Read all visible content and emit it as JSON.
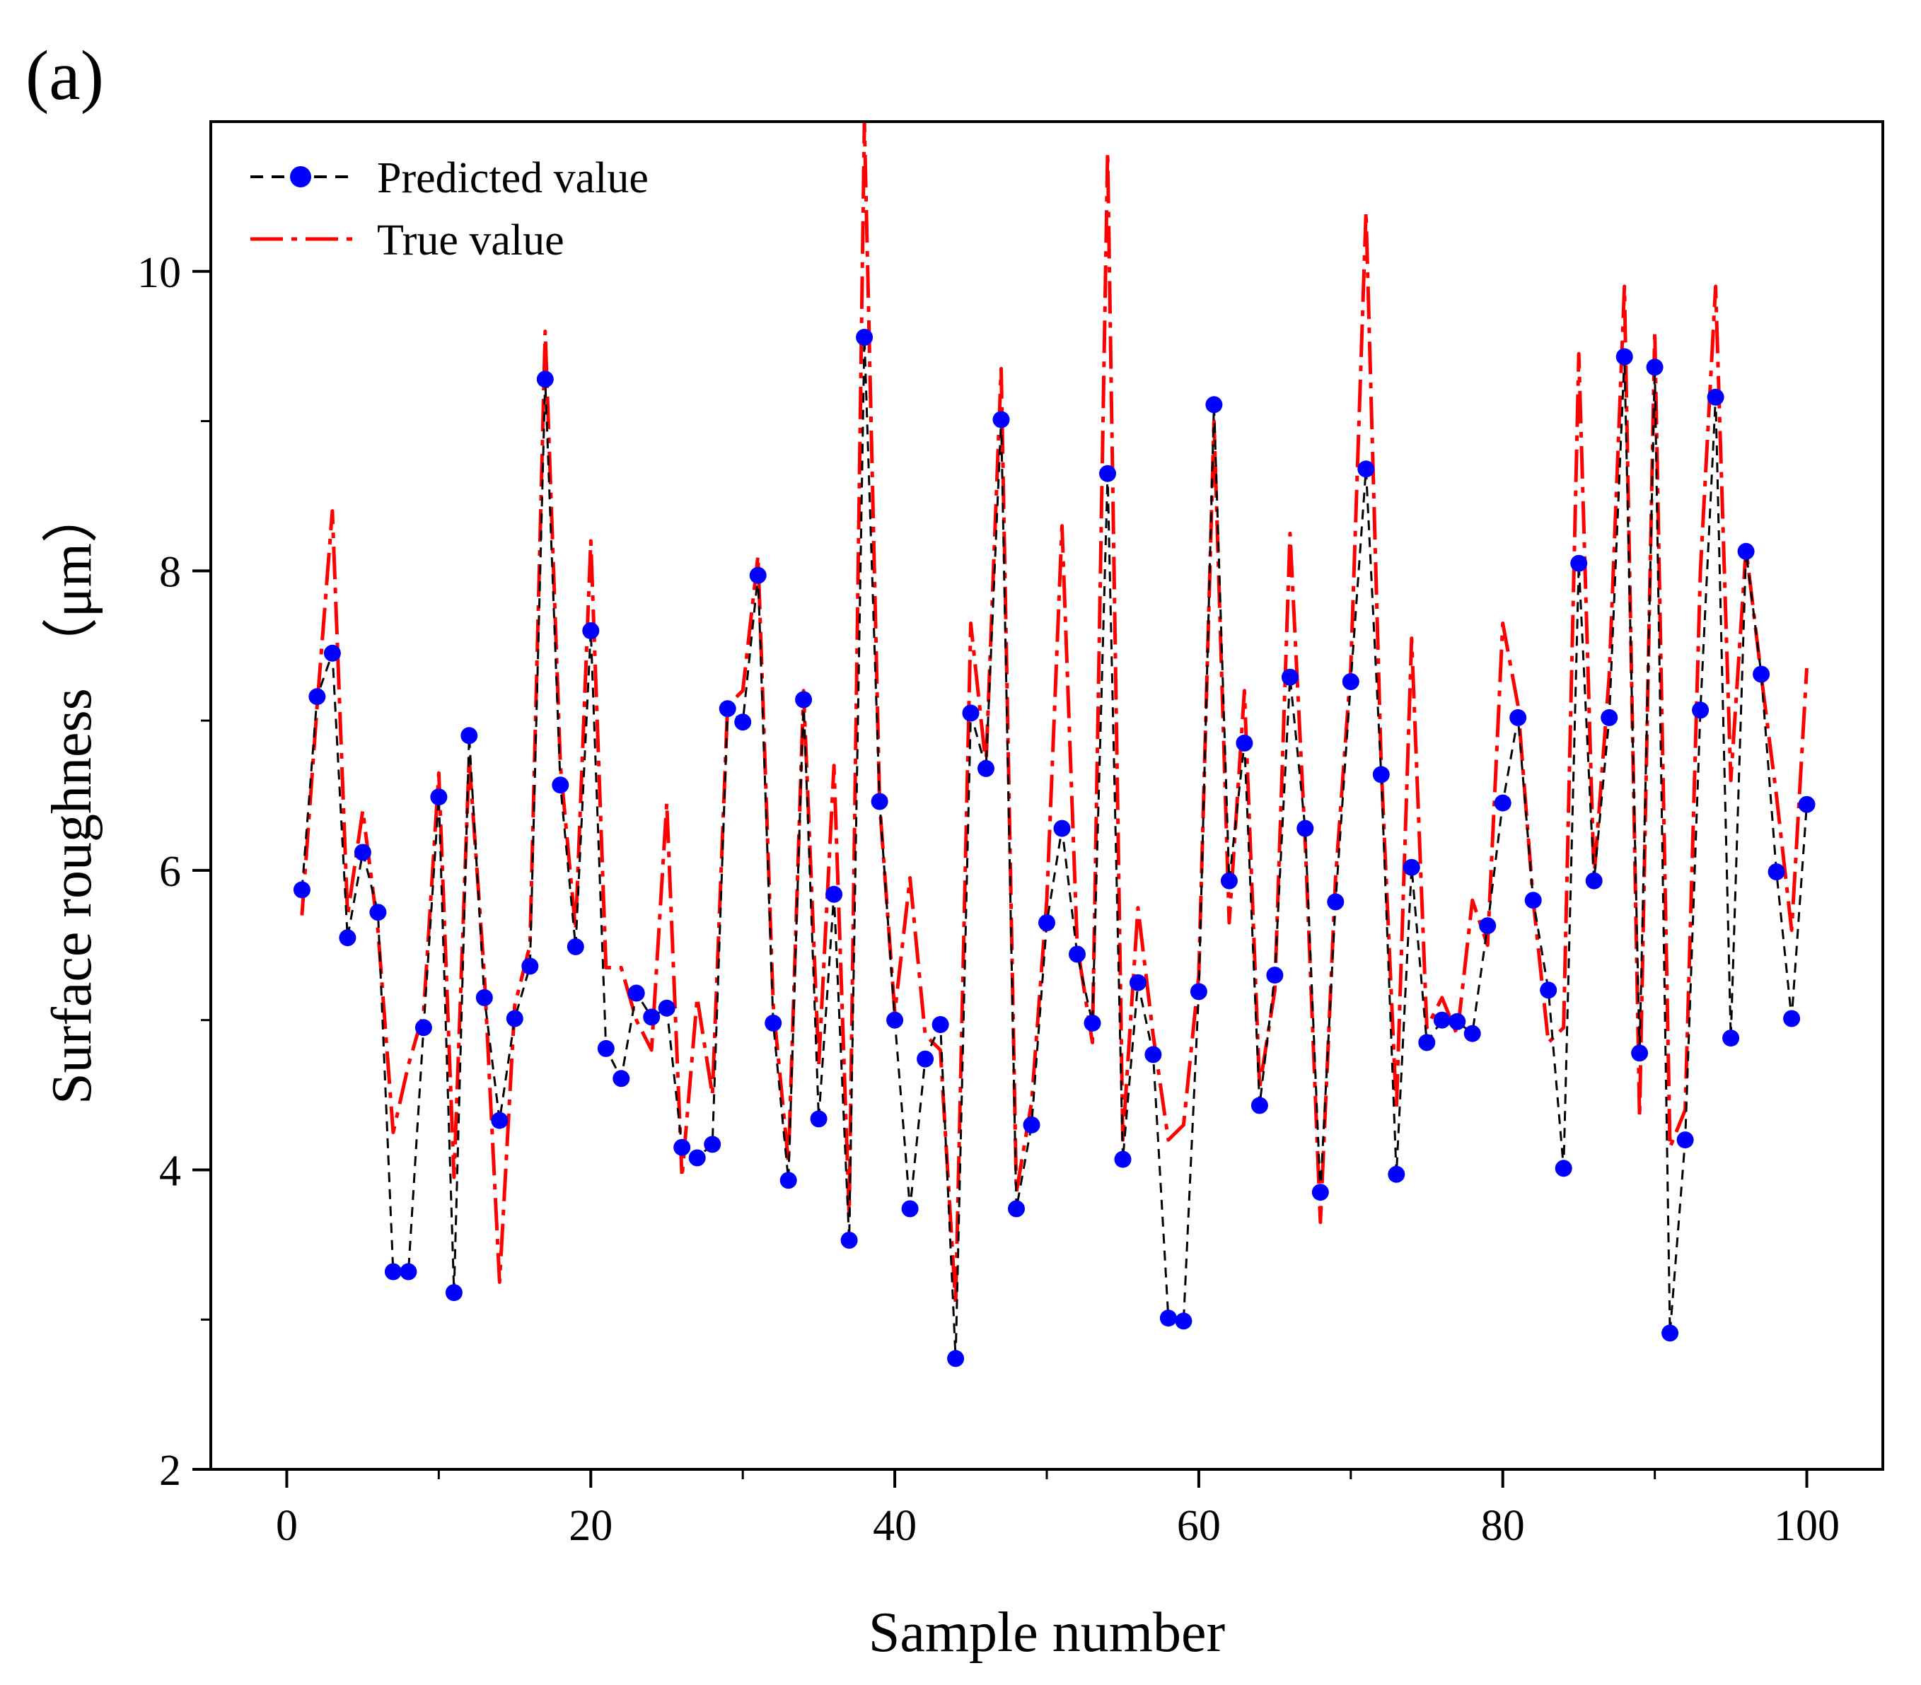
{
  "chart_data": {
    "type": "line",
    "panel_label": "(a)",
    "title": "",
    "xlabel": "Sample number",
    "ylabel": "Surface roughness （μm）",
    "xlim": [
      -5,
      105
    ],
    "ylim": [
      2,
      11
    ],
    "xticks": [
      0,
      20,
      40,
      60,
      80,
      100
    ],
    "yticks": [
      2,
      4,
      6,
      8,
      10
    ],
    "xtick_labels": [
      "0",
      "20",
      "40",
      "60",
      "80",
      "100"
    ],
    "ytick_labels": [
      "2",
      "4",
      "6",
      "8",
      "10"
    ],
    "grid": false,
    "legend_position": "top-left",
    "x": [
      1,
      2,
      3,
      4,
      5,
      6,
      7,
      8,
      9,
      10,
      11,
      12,
      13,
      14,
      15,
      16,
      17,
      18,
      19,
      20,
      21,
      22,
      23,
      24,
      25,
      26,
      27,
      28,
      29,
      30,
      31,
      32,
      33,
      34,
      35,
      36,
      37,
      38,
      39,
      40,
      41,
      42,
      43,
      44,
      45,
      46,
      47,
      48,
      49,
      50,
      51,
      52,
      53,
      54,
      55,
      56,
      57,
      58,
      59,
      60,
      61,
      62,
      63,
      64,
      65,
      66,
      67,
      68,
      69,
      70,
      71,
      72,
      73,
      74,
      75,
      76,
      77,
      78,
      79,
      80,
      81,
      82,
      83,
      84,
      85,
      86,
      87,
      88,
      89,
      90,
      91,
      92,
      93,
      94,
      95,
      96,
      97,
      98,
      99,
      100
    ],
    "series": [
      {
        "name": "Predicted value",
        "color": "#000000",
        "marker_color": "#0000ff",
        "style": "dashed-with-markers",
        "values": [
          5.87,
          7.16,
          7.45,
          5.55,
          6.12,
          5.72,
          3.32,
          3.32,
          4.95,
          6.49,
          3.18,
          6.9,
          5.15,
          4.33,
          5.01,
          5.36,
          9.28,
          6.57,
          5.49,
          7.6,
          4.81,
          4.61,
          5.18,
          5.02,
          5.08,
          4.15,
          4.08,
          4.17,
          7.08,
          6.99,
          7.97,
          4.98,
          3.93,
          7.14,
          4.34,
          5.84,
          3.53,
          9.56,
          6.46,
          5.0,
          3.74,
          4.74,
          4.97,
          2.74,
          7.05,
          6.68,
          9.01,
          3.74,
          4.3,
          5.65,
          6.28,
          5.44,
          4.98,
          8.65,
          4.07,
          5.25,
          4.77,
          3.01,
          2.99,
          5.19,
          9.11,
          5.93,
          6.85,
          4.43,
          5.3,
          7.29,
          6.28,
          3.85,
          5.79,
          7.26,
          8.68,
          6.64,
          3.97,
          6.02,
          4.85,
          5.0,
          4.99,
          4.91,
          5.63,
          6.45,
          7.02,
          5.8,
          5.2,
          4.01,
          8.05,
          5.93,
          7.02,
          9.43,
          4.78,
          9.36,
          2.91,
          4.2,
          7.07,
          9.16,
          4.88,
          8.13,
          7.31,
          5.99,
          5.01,
          6.44
        ]
      },
      {
        "name": "True value",
        "color": "#ff0000",
        "style": "dash-dot",
        "values": [
          5.7,
          7.1,
          8.4,
          5.7,
          6.4,
          5.6,
          4.25,
          4.7,
          5.05,
          6.65,
          3.95,
          6.75,
          5.3,
          3.25,
          5.1,
          5.5,
          9.6,
          6.7,
          5.6,
          8.2,
          5.35,
          5.35,
          5.0,
          4.8,
          6.45,
          3.95,
          5.15,
          4.5,
          7.1,
          7.2,
          8.1,
          5.1,
          4.05,
          7.2,
          4.7,
          6.7,
          3.7,
          11.0,
          6.45,
          5.05,
          5.95,
          4.9,
          4.8,
          3.1,
          7.65,
          6.7,
          9.35,
          3.85,
          4.45,
          5.8,
          8.3,
          5.5,
          4.85,
          10.8,
          4.2,
          5.75,
          4.9,
          4.2,
          4.3,
          5.3,
          9.0,
          5.65,
          7.2,
          4.55,
          5.2,
          8.25,
          6.2,
          3.65,
          5.95,
          7.35,
          10.4,
          6.7,
          4.4,
          7.55,
          4.95,
          5.15,
          4.9,
          5.8,
          5.5,
          7.65,
          7.1,
          5.8,
          4.85,
          4.95,
          9.45,
          5.95,
          7.3,
          9.9,
          4.35,
          9.6,
          4.15,
          4.4,
          8.0,
          9.9,
          6.6,
          8.15,
          7.3,
          6.5,
          5.6,
          7.35
        ]
      }
    ]
  }
}
